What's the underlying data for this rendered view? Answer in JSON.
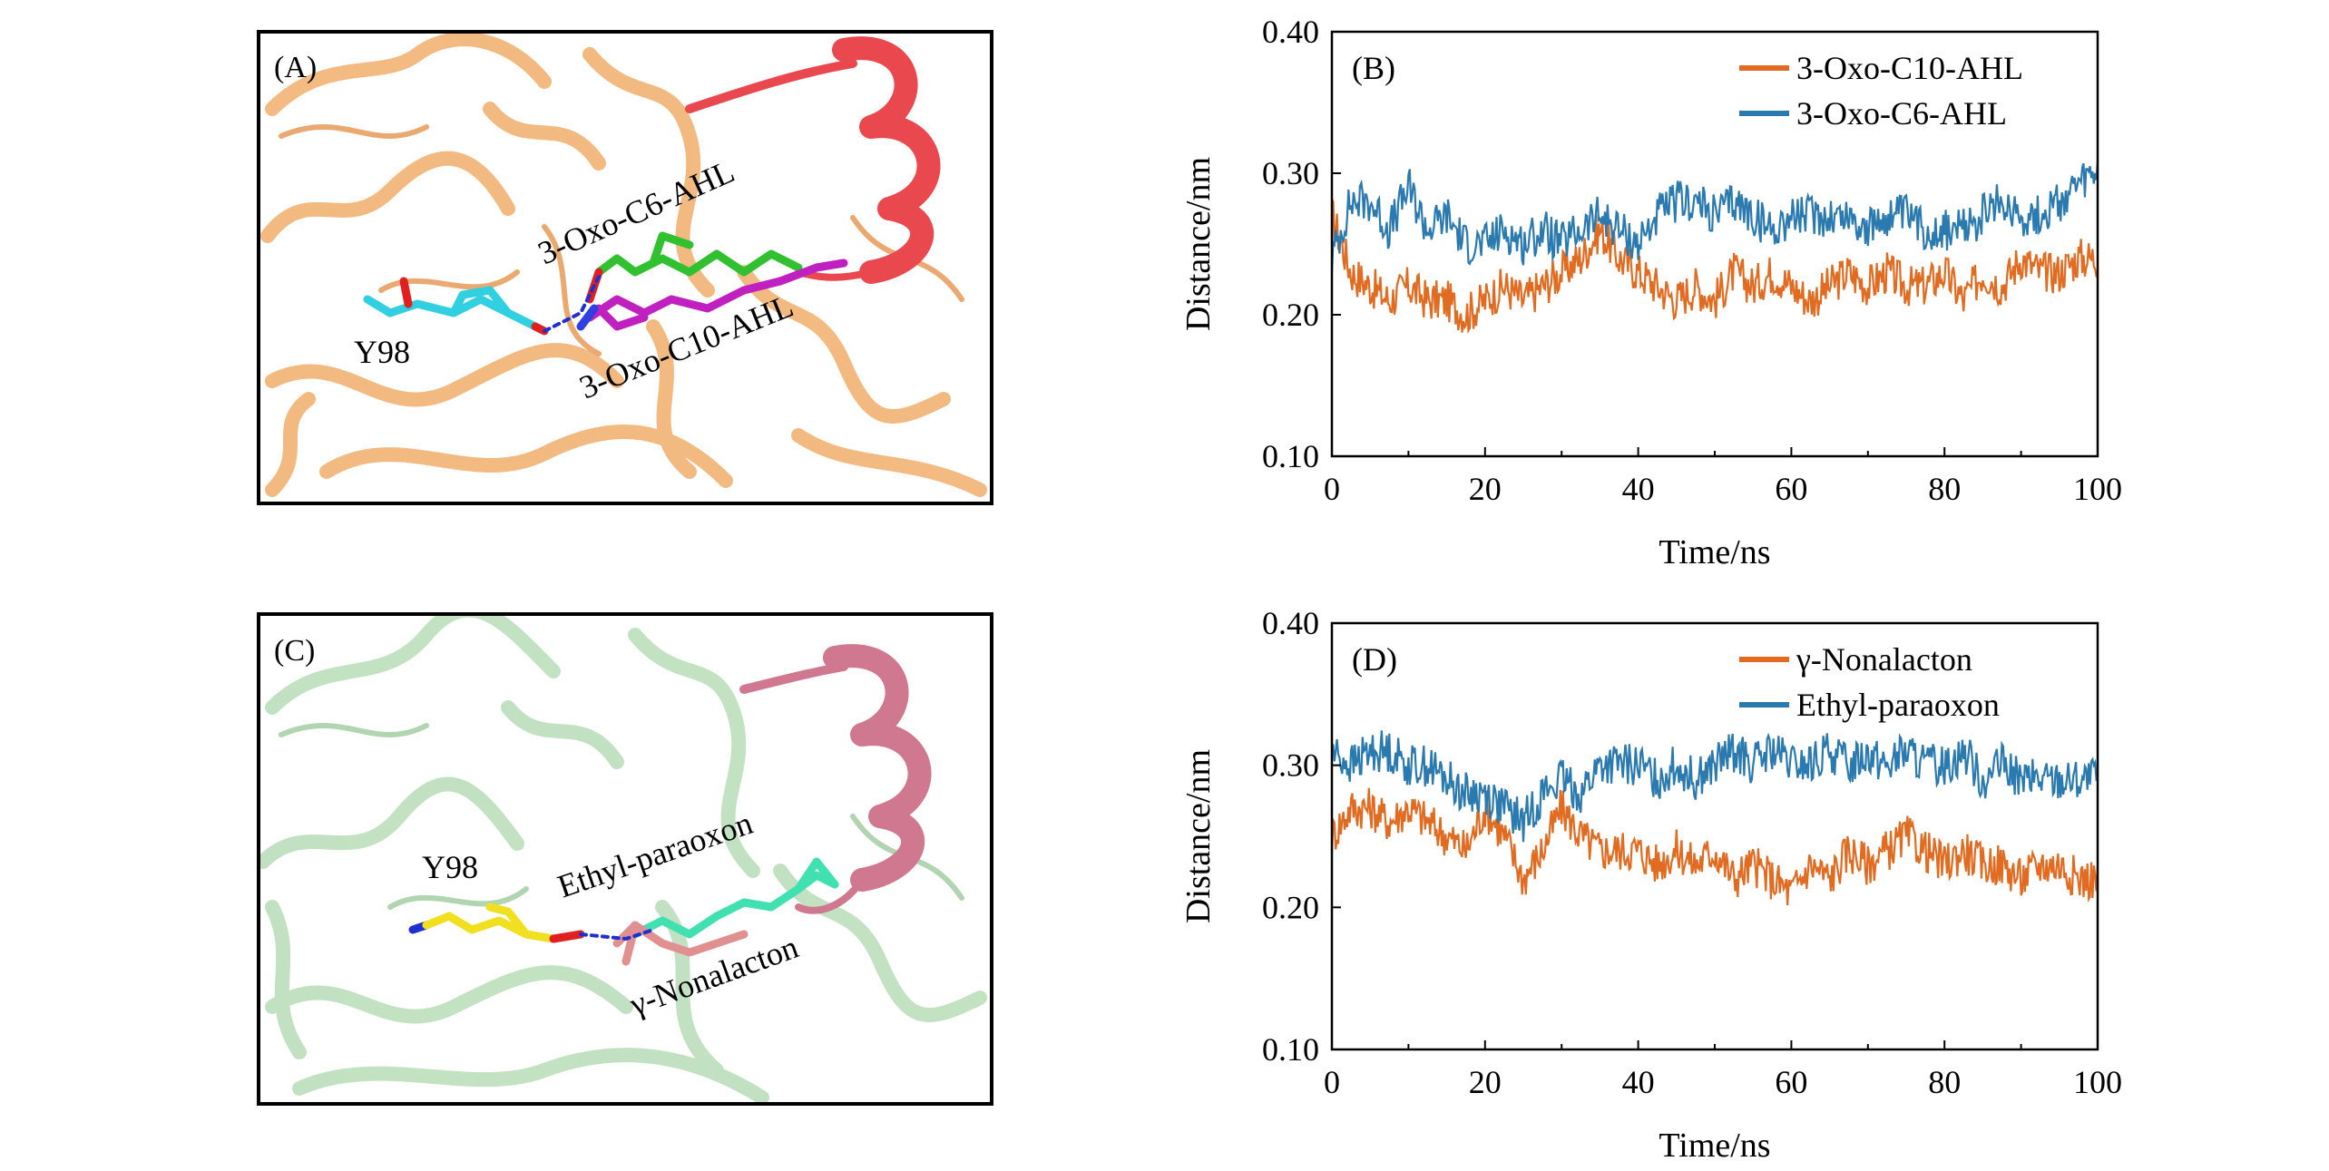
{
  "panels": {
    "A": {
      "label": "(A)",
      "residue": "Y98",
      "ligand_upper": "3-Oxo-C6-AHL",
      "ligand_lower": "3-Oxo-C10-AHL",
      "colors": {
        "protein": "#f0b070",
        "helix": "#e8484e",
        "residue": "#30d0e0",
        "ligand_upper": "#30c030",
        "ligand_lower": "#c020c0",
        "hbond": "#2030d0"
      }
    },
    "C": {
      "label": "(C)",
      "residue": "Y98",
      "ligand_upper": "Ethyl-paraoxon",
      "ligand_lower": "γ-Nonalacton",
      "colors": {
        "protein": "#b8dcb8",
        "helix": "#d07890",
        "residue": "#f0e020",
        "ligand_upper": "#40e0b0",
        "ligand_lower": "#e09090",
        "hbond": "#2030d0"
      }
    }
  },
  "chart_data": [
    {
      "panel_label": "(B)",
      "type": "line",
      "xlabel": "Time/ns",
      "ylabel": "Distance/nm",
      "xlim": [
        0,
        100
      ],
      "ylim": [
        0.1,
        0.4
      ],
      "xticks": [
        "0",
        "20",
        "40",
        "60",
        "80",
        "100"
      ],
      "yticks": [
        "0.10",
        "0.20",
        "0.30",
        "0.40"
      ],
      "legend_position": "top-right",
      "x": [
        0,
        2.5,
        5,
        7.5,
        10,
        12.5,
        15,
        17.5,
        20,
        22.5,
        25,
        27.5,
        30,
        32.5,
        35,
        37.5,
        40,
        42.5,
        45,
        47.5,
        50,
        52.5,
        55,
        57.5,
        60,
        62.5,
        65,
        67.5,
        70,
        72.5,
        75,
        77.5,
        80,
        82.5,
        85,
        87.5,
        90,
        92.5,
        95,
        97.5,
        100
      ],
      "series": [
        {
          "name": "3-Oxo-C10-AHL",
          "color": "#e06b21",
          "values": [
            0.27,
            0.23,
            0.22,
            0.21,
            0.22,
            0.21,
            0.21,
            0.2,
            0.21,
            0.22,
            0.21,
            0.22,
            0.23,
            0.24,
            0.26,
            0.24,
            0.23,
            0.22,
            0.21,
            0.22,
            0.21,
            0.23,
            0.22,
            0.23,
            0.22,
            0.21,
            0.22,
            0.23,
            0.22,
            0.23,
            0.22,
            0.22,
            0.23,
            0.21,
            0.23,
            0.22,
            0.24,
            0.23,
            0.23,
            0.24,
            0.24
          ]
        },
        {
          "name": "3-Oxo-C6-AHL",
          "color": "#2a7ab0",
          "values": [
            0.24,
            0.28,
            0.28,
            0.26,
            0.29,
            0.26,
            0.27,
            0.25,
            0.25,
            0.26,
            0.25,
            0.26,
            0.25,
            0.26,
            0.27,
            0.26,
            0.25,
            0.27,
            0.28,
            0.28,
            0.27,
            0.28,
            0.27,
            0.26,
            0.27,
            0.27,
            0.27,
            0.27,
            0.26,
            0.27,
            0.27,
            0.26,
            0.26,
            0.26,
            0.27,
            0.28,
            0.27,
            0.27,
            0.28,
            0.29,
            0.3
          ]
        }
      ]
    },
    {
      "panel_label": "(D)",
      "type": "line",
      "xlabel": "Time/ns",
      "ylabel": "Distance/nm",
      "xlim": [
        0,
        100
      ],
      "ylim": [
        0.1,
        0.4
      ],
      "xticks": [
        "0",
        "20",
        "40",
        "60",
        "80",
        "100"
      ],
      "yticks": [
        "0.10",
        "0.20",
        "0.30",
        "0.40"
      ],
      "legend_position": "top-right",
      "x": [
        0,
        2.5,
        5,
        7.5,
        10,
        12.5,
        15,
        17.5,
        20,
        22.5,
        25,
        27.5,
        30,
        32.5,
        35,
        37.5,
        40,
        42.5,
        45,
        47.5,
        50,
        52.5,
        55,
        57.5,
        60,
        62.5,
        65,
        67.5,
        70,
        72.5,
        75,
        77.5,
        80,
        82.5,
        85,
        87.5,
        90,
        92.5,
        95,
        97.5,
        100
      ],
      "series": [
        {
          "name": "γ-Nonalacton",
          "color": "#e06b21",
          "values": [
            0.25,
            0.27,
            0.27,
            0.26,
            0.27,
            0.26,
            0.25,
            0.24,
            0.27,
            0.25,
            0.22,
            0.24,
            0.27,
            0.25,
            0.24,
            0.24,
            0.24,
            0.23,
            0.24,
            0.23,
            0.24,
            0.22,
            0.23,
            0.22,
            0.21,
            0.23,
            0.22,
            0.24,
            0.23,
            0.24,
            0.25,
            0.24,
            0.23,
            0.24,
            0.23,
            0.23,
            0.22,
            0.23,
            0.23,
            0.22,
            0.22
          ]
        },
        {
          "name": "Ethyl-paraoxon",
          "color": "#2a7ab0",
          "values": [
            0.31,
            0.3,
            0.31,
            0.31,
            0.3,
            0.3,
            0.29,
            0.28,
            0.28,
            0.27,
            0.26,
            0.28,
            0.29,
            0.28,
            0.3,
            0.3,
            0.3,
            0.29,
            0.3,
            0.29,
            0.3,
            0.31,
            0.3,
            0.31,
            0.3,
            0.3,
            0.31,
            0.3,
            0.31,
            0.3,
            0.31,
            0.3,
            0.3,
            0.31,
            0.29,
            0.3,
            0.29,
            0.29,
            0.29,
            0.29,
            0.29
          ]
        }
      ]
    }
  ]
}
